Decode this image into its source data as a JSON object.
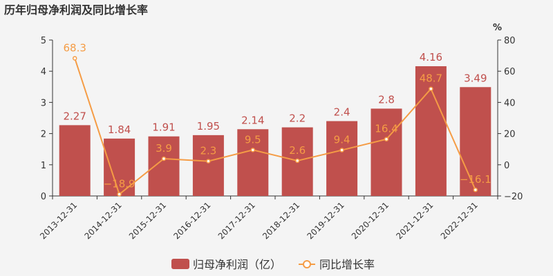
{
  "chart_data": {
    "type": "bar",
    "title": "历年归母净利润及同比增长率",
    "categories": [
      "2013-12-31",
      "2014-12-31",
      "2015-12-31",
      "2016-12-31",
      "2017-12-31",
      "2018-12-31",
      "2019-12-31",
      "2020-12-31",
      "2021-12-31",
      "2022-12-31"
    ],
    "series": [
      {
        "name": "归母净利润（亿）",
        "type": "bar",
        "axis": "left",
        "color": "#c0504d",
        "values": [
          2.27,
          1.84,
          1.91,
          1.95,
          2.14,
          2.2,
          2.4,
          2.8,
          4.16,
          3.49
        ],
        "labels": [
          "2.27",
          "1.84",
          "1.91",
          "1.95",
          "2.14",
          "2.2",
          "2.4",
          "2.8",
          "4.16",
          "3.49"
        ]
      },
      {
        "name": "同比增长率",
        "type": "line",
        "axis": "right",
        "color": "#f59c45",
        "values": [
          68.3,
          -18.9,
          3.9,
          2.3,
          9.5,
          2.6,
          9.4,
          16.4,
          48.7,
          -16.1
        ],
        "labels": [
          "68.3",
          "−18.9",
          "3.9",
          "2.3",
          "9.5",
          "2.6",
          "9.4",
          "16.4",
          "48.7",
          "−16.1"
        ]
      }
    ],
    "y_left": {
      "min": 0,
      "max": 5,
      "ticks": [
        "0",
        "1",
        "2",
        "3",
        "4",
        "5"
      ]
    },
    "y_right": {
      "min": -20,
      "max": 80,
      "unit": "%",
      "ticks": [
        "−20",
        "0",
        "20",
        "40",
        "60",
        "80"
      ]
    },
    "legend_position": "bottom-center",
    "grid": false
  }
}
